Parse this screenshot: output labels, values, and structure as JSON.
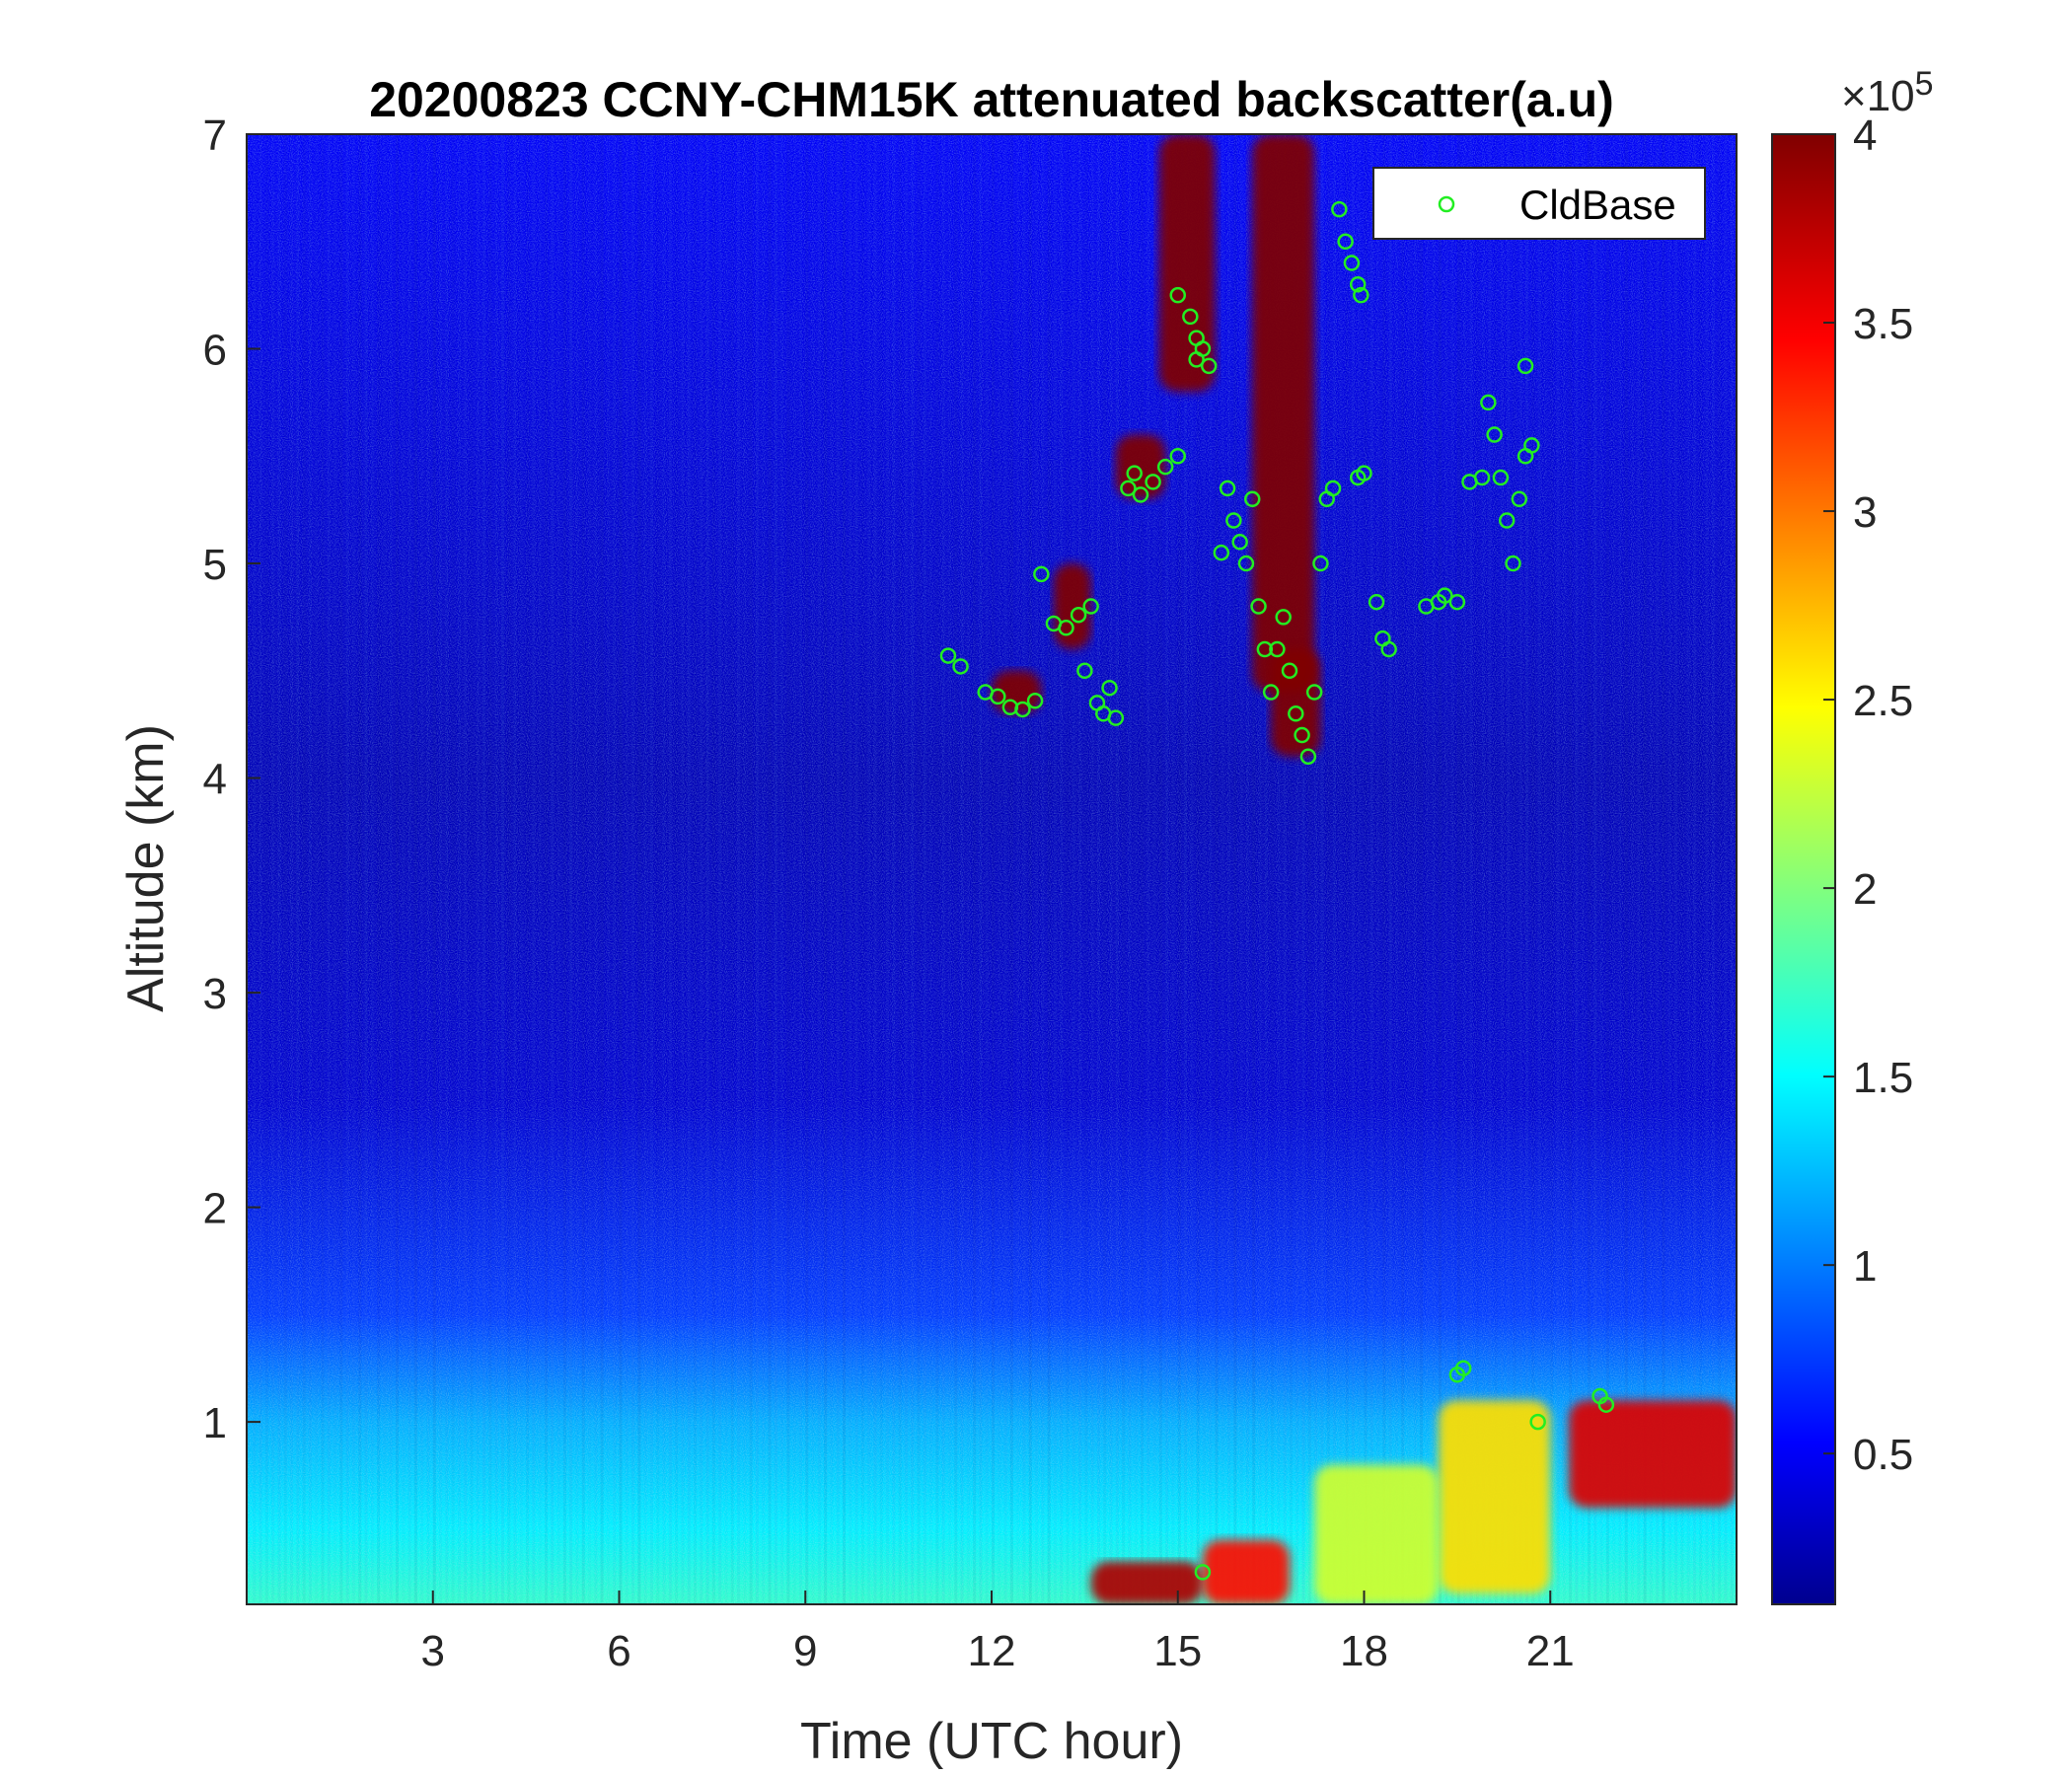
{
  "chart_data": {
    "type": "heatmap",
    "title": "20200823 CCNY-CHM15K attenuated backscatter(a.u)",
    "xlabel": "Time (UTC hour)",
    "ylabel": "Altitude (km)",
    "xlim": [
      0,
      24
    ],
    "ylim": [
      0.15,
      7
    ],
    "xticks": [
      3,
      6,
      9,
      12,
      15,
      18,
      21
    ],
    "yticks": [
      1,
      2,
      3,
      4,
      5,
      6,
      7
    ],
    "colormap": "jet",
    "colorbar": {
      "clim": [
        0.1,
        4
      ],
      "ticks": [
        0.5,
        1,
        1.5,
        2,
        2.5,
        3,
        3.5,
        4
      ],
      "exponent_base": "×10",
      "exponent_power": "5",
      "colors": [
        "#00008f",
        "#0000ff",
        "#00ffff",
        "#ffff00",
        "#ff0000",
        "#800000"
      ]
    },
    "legend": {
      "label": "CldBase",
      "placement": "top-right",
      "marker_color": "#22ee22"
    },
    "background_levels": [
      {
        "altitude_km": 0.15,
        "value": 1.7
      },
      {
        "altitude_km": 0.5,
        "value": 1.45
      },
      {
        "altitude_km": 1.0,
        "value": 1.2
      },
      {
        "altitude_km": 1.5,
        "value": 0.75
      },
      {
        "altitude_km": 2.5,
        "value": 0.35
      },
      {
        "altitude_km": 4.0,
        "value": 0.25
      },
      {
        "altitude_km": 7.0,
        "value": 0.5
      }
    ],
    "cloud_regions": [
      {
        "x": [
          14.7,
          15.6
        ],
        "y": [
          5.8,
          7.0
        ],
        "value": 4
      },
      {
        "x": [
          16.2,
          17.2
        ],
        "y": [
          4.4,
          7.0
        ],
        "value": 4
      },
      {
        "x": [
          16.5,
          17.3
        ],
        "y": [
          4.1,
          4.6
        ],
        "value": 4
      },
      {
        "x": [
          13.0,
          13.6
        ],
        "y": [
          4.6,
          5.0
        ],
        "value": 4
      },
      {
        "x": [
          12.0,
          12.8
        ],
        "y": [
          4.3,
          4.5
        ],
        "value": 4
      },
      {
        "x": [
          14.0,
          14.8
        ],
        "y": [
          5.3,
          5.6
        ],
        "value": 4
      },
      {
        "x": [
          13.6,
          15.4
        ],
        "y": [
          0.15,
          0.35
        ],
        "value": 3.8
      },
      {
        "x": [
          15.4,
          16.8
        ],
        "y": [
          0.15,
          0.45
        ],
        "value": 3.4
      },
      {
        "x": [
          21.3,
          24.0
        ],
        "y": [
          0.6,
          1.1
        ],
        "value": 3.6
      },
      {
        "x": [
          19.2,
          21.0
        ],
        "y": [
          0.2,
          1.1
        ],
        "value": 2.6
      },
      {
        "x": [
          17.2,
          19.2
        ],
        "y": [
          0.15,
          0.8
        ],
        "value": 2.3
      }
    ],
    "series": [
      {
        "name": "CldBase",
        "points": [
          [
            11.3,
            4.57
          ],
          [
            11.5,
            4.52
          ],
          [
            11.9,
            4.4
          ],
          [
            12.1,
            4.38
          ],
          [
            12.3,
            4.33
          ],
          [
            12.5,
            4.32
          ],
          [
            12.7,
            4.36
          ],
          [
            13.0,
            4.72
          ],
          [
            13.2,
            4.7
          ],
          [
            13.4,
            4.76
          ],
          [
            13.6,
            4.8
          ],
          [
            12.8,
            4.95
          ],
          [
            13.5,
            4.5
          ],
          [
            13.7,
            4.35
          ],
          [
            13.8,
            4.3
          ],
          [
            14.0,
            4.28
          ],
          [
            13.9,
            4.42
          ],
          [
            14.2,
            5.35
          ],
          [
            14.4,
            5.32
          ],
          [
            14.6,
            5.38
          ],
          [
            14.8,
            5.45
          ],
          [
            15.0,
            5.5
          ],
          [
            14.3,
            5.42
          ],
          [
            15.0,
            6.25
          ],
          [
            15.2,
            6.15
          ],
          [
            15.3,
            6.05
          ],
          [
            15.4,
            6.0
          ],
          [
            15.5,
            5.92
          ],
          [
            15.3,
            5.95
          ],
          [
            15.8,
            5.35
          ],
          [
            15.9,
            5.2
          ],
          [
            16.0,
            5.1
          ],
          [
            15.7,
            5.05
          ],
          [
            16.2,
            5.3
          ],
          [
            16.1,
            5.0
          ],
          [
            16.3,
            4.8
          ],
          [
            16.4,
            4.6
          ],
          [
            16.5,
            4.4
          ],
          [
            16.6,
            4.6
          ],
          [
            16.7,
            4.75
          ],
          [
            16.8,
            4.5
          ],
          [
            16.9,
            4.3
          ],
          [
            17.0,
            4.2
          ],
          [
            17.1,
            4.1
          ],
          [
            17.2,
            4.4
          ],
          [
            17.3,
            5.0
          ],
          [
            17.4,
            5.3
          ],
          [
            17.5,
            5.35
          ],
          [
            17.6,
            6.65
          ],
          [
            17.7,
            6.5
          ],
          [
            17.8,
            6.4
          ],
          [
            17.9,
            6.3
          ],
          [
            17.95,
            6.25
          ],
          [
            17.9,
            5.4
          ],
          [
            18.0,
            5.42
          ],
          [
            18.2,
            4.82
          ],
          [
            18.3,
            4.65
          ],
          [
            18.4,
            4.6
          ],
          [
            19.0,
            4.8
          ],
          [
            19.2,
            4.82
          ],
          [
            19.3,
            4.85
          ],
          [
            19.5,
            4.82
          ],
          [
            19.7,
            5.38
          ],
          [
            19.9,
            5.4
          ],
          [
            20.0,
            5.75
          ],
          [
            20.1,
            5.6
          ],
          [
            20.2,
            5.4
          ],
          [
            20.3,
            5.2
          ],
          [
            20.4,
            5.0
          ],
          [
            20.5,
            5.3
          ],
          [
            20.6,
            5.5
          ],
          [
            20.7,
            5.55
          ],
          [
            20.6,
            5.92
          ],
          [
            19.5,
            1.22
          ],
          [
            19.6,
            1.25
          ],
          [
            20.8,
            1.0
          ],
          [
            21.8,
            1.12
          ],
          [
            21.9,
            1.08
          ],
          [
            15.4,
            0.3
          ]
        ]
      }
    ]
  }
}
